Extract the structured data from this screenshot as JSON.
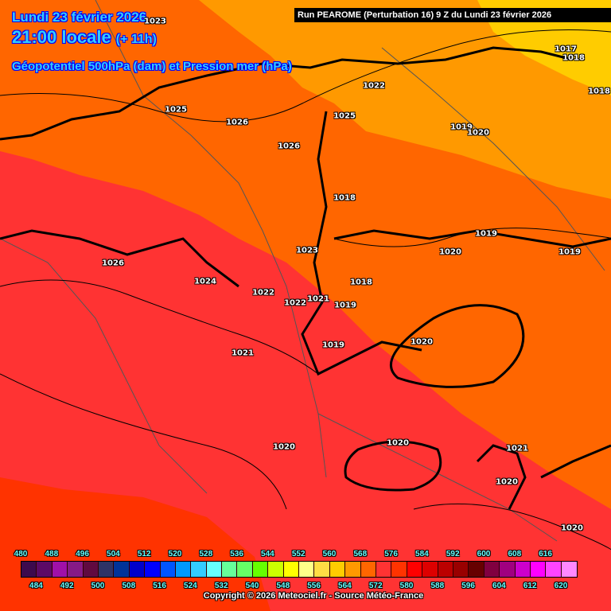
{
  "header": {
    "date": "Lundi 23 février 2026",
    "time": "21:00 locale",
    "lead": "(+ 11h)",
    "parameter": "Géopotentiel 500hPa (dam) et Pression mer (hPa)",
    "run": "Run PEAROME (Perturbation 16) 9 Z du Lundi 23 février 2026"
  },
  "isobar_labels": [
    "1025",
    "1026",
    "1026",
    "1022",
    "1025",
    "1018",
    "1019",
    "1020",
    "1017",
    "1018",
    "1018",
    "1019",
    "1020",
    "1019",
    "1026",
    "1024",
    "1022",
    "1022",
    "1021",
    "1023",
    "1018",
    "1019",
    "1019",
    "1021",
    "1020",
    "1020",
    "1020",
    "1021",
    "1020",
    "1020",
    "1023"
  ],
  "legend": {
    "top_labels": [
      "480",
      "488",
      "496",
      "504",
      "512",
      "520",
      "528",
      "536",
      "544",
      "552",
      "560",
      "568",
      "576",
      "584",
      "592",
      "600",
      "608",
      "616"
    ],
    "bottom_labels": [
      "484",
      "492",
      "500",
      "508",
      "516",
      "524",
      "532",
      "540",
      "548",
      "556",
      "564",
      "572",
      "580",
      "588",
      "596",
      "604",
      "612",
      "620"
    ],
    "colors": [
      "#3d0a4d",
      "#5c0a66",
      "#a010a8",
      "#861a86",
      "#600a40",
      "#2e3366",
      "#003399",
      "#0000cc",
      "#0000ff",
      "#0055ff",
      "#0099ff",
      "#33ccff",
      "#66ffff",
      "#66ff99",
      "#66ff66",
      "#66ff00",
      "#ccff00",
      "#ffff00",
      "#ffff88",
      "#ffdd44",
      "#ffcc00",
      "#ff9900",
      "#ff6600",
      "#ff3333",
      "#ff3300",
      "#ff0000",
      "#dd0000",
      "#bb0000",
      "#990000",
      "#660000",
      "#800040",
      "#a00080",
      "#cc00cc",
      "#ff00ff",
      "#ff44ff",
      "#ff88ff"
    ]
  },
  "copyright": "Copyright © 2026 Meteociel.fr - Source Météo-France"
}
